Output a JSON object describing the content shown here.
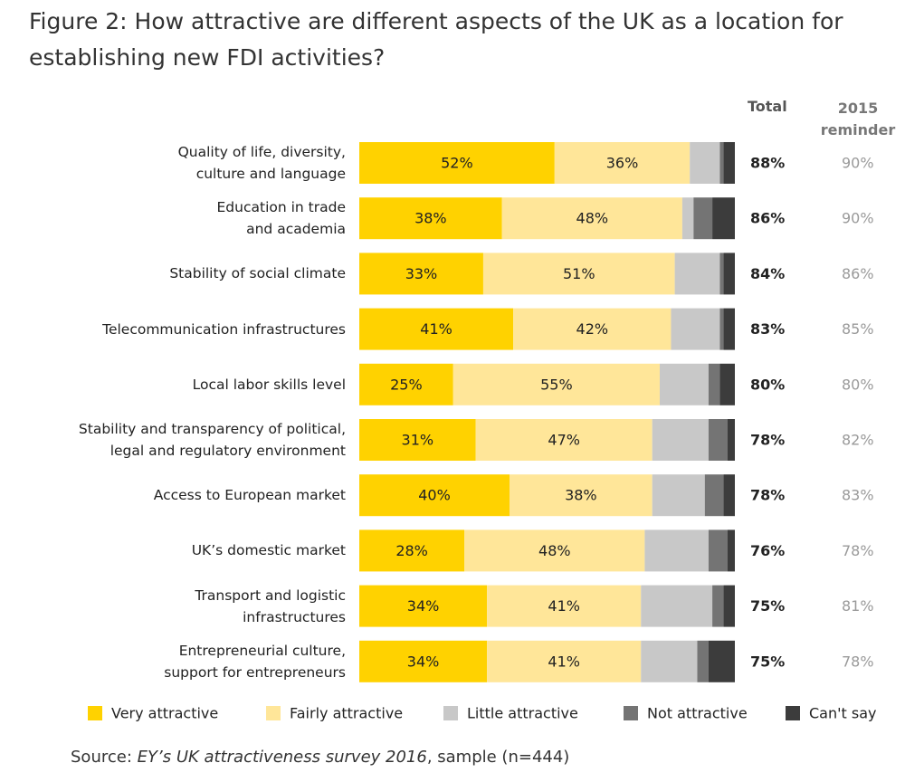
{
  "chart_data": {
    "type": "stacked-barh",
    "title": "Figure 2: How attractive are different aspects of the UK as a location for establishing new FDI activities?",
    "categories": [
      "Quality of life, diversity,\nculture and language",
      "Education in trade\nand academia",
      "Stability of social climate",
      "Telecommunication infrastructures",
      "Local labor skills level",
      "Stability and transparency of political,\nlegal and regulatory environment",
      "Access to European market",
      "UK’s domestic market",
      "Transport and logistic\ninfrastructures",
      "Entrepreneurial culture,\nsupport for entrepreneurs"
    ],
    "xlim": [
      0,
      100
    ],
    "series": [
      {
        "name": "Very attractive",
        "color": "#ffd200",
        "values": [
          52,
          38,
          33,
          41,
          25,
          31,
          40,
          28,
          34,
          34
        ],
        "value_labels": [
          "52%",
          "38%",
          "33%",
          "41%",
          "25%",
          "31%",
          "40%",
          "28%",
          "34%",
          "34%"
        ]
      },
      {
        "name": "Fairly attractive",
        "color": "#ffe699",
        "values": [
          36,
          48,
          51,
          42,
          55,
          47,
          38,
          48,
          41,
          41
        ],
        "value_labels": [
          "36%",
          "48%",
          "51%",
          "42%",
          "55%",
          "47%",
          "38%",
          "48%",
          "41%",
          "41%"
        ]
      },
      {
        "name": "Little attractive",
        "color": "#c8c8c8",
        "values": [
          8,
          3,
          12,
          13,
          13,
          15,
          14,
          17,
          19,
          15
        ]
      },
      {
        "name": "Not attractive",
        "color": "#747474",
        "values": [
          1,
          5,
          1,
          1,
          3,
          5,
          5,
          5,
          3,
          3
        ]
      },
      {
        "name": "Can't say",
        "color": "#3c3c3c",
        "values": [
          3,
          6,
          3,
          3,
          4,
          2,
          3,
          2,
          3,
          7
        ]
      }
    ],
    "total": {
      "header": "Total",
      "values": [
        88,
        86,
        84,
        83,
        80,
        78,
        78,
        76,
        75,
        75
      ],
      "value_labels": [
        "88%",
        "86%",
        "84%",
        "83%",
        "80%",
        "78%",
        "78%",
        "76%",
        "75%",
        "75%"
      ]
    },
    "reminder": {
      "header": "2015\nreminder",
      "values": [
        90,
        90,
        86,
        85,
        80,
        82,
        83,
        78,
        81,
        78
      ],
      "value_labels": [
        "90%",
        "90%",
        "86%",
        "85%",
        "80%",
        "82%",
        "83%",
        "78%",
        "81%",
        "78%"
      ]
    },
    "source": {
      "label": "Source:",
      "title": "EY’s UK attractiveness survey 2016",
      "detail": ", sample (n=444)"
    }
  }
}
